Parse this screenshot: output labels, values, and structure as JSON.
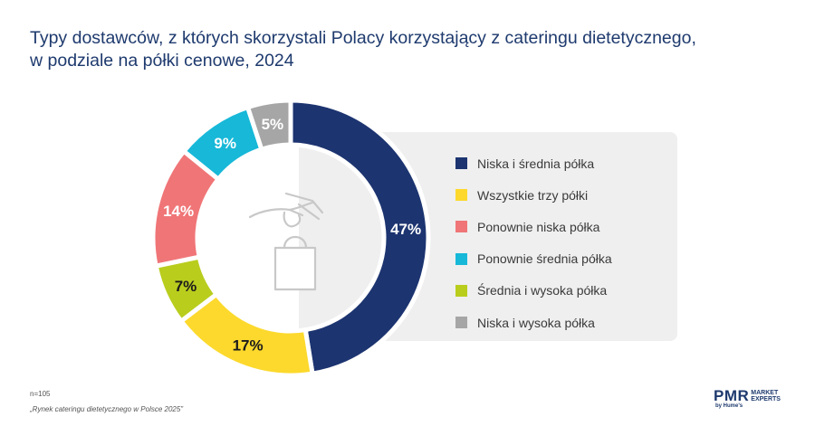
{
  "title": {
    "line1": "Typy dostawców, z których skorzystali Polacy korzystający z cateringu dietetycznego,",
    "line2": "w podziale na półki cenowe, 2024"
  },
  "chart_data": {
    "type": "pie",
    "variant": "donut",
    "title": "Typy dostawców, z których skorzystali Polacy korzystający z cateringu dietetycznego, w podziale na półki cenowe, 2024",
    "legend_position": "right",
    "categories": [
      "Niska i średnia półka",
      "Wszystkie trzy półki",
      "Ponownie niska półka",
      "Ponownie średnia półka",
      "Średnia i wysoka półka",
      "Niska i wysoka półka"
    ],
    "values": [
      47,
      17,
      14,
      9,
      7,
      5
    ],
    "labels": [
      "47%",
      "17%",
      "14%",
      "9%",
      "7%",
      "5%"
    ],
    "slice_order": [
      0,
      1,
      4,
      2,
      3,
      5
    ],
    "colors": [
      "#1c3470",
      "#fcd92c",
      "#f07577",
      "#17b8d8",
      "#b9cd1d",
      "#a6a6a6"
    ],
    "label_colors": [
      "#ffffff",
      "#1c1c1c",
      "#ffffff",
      "#ffffff",
      "#1c1c1c",
      "#ffffff"
    ],
    "center_icon": "hand-holding-shopping-bag-icon"
  },
  "footer": {
    "sample": "n=105",
    "source": "„Rynek cateringu dietetycznego w Polsce 2025”"
  },
  "logo": {
    "main": "PMR",
    "side1": "MARKET",
    "side2": "EXPERTS",
    "sub": "by Hume's"
  }
}
